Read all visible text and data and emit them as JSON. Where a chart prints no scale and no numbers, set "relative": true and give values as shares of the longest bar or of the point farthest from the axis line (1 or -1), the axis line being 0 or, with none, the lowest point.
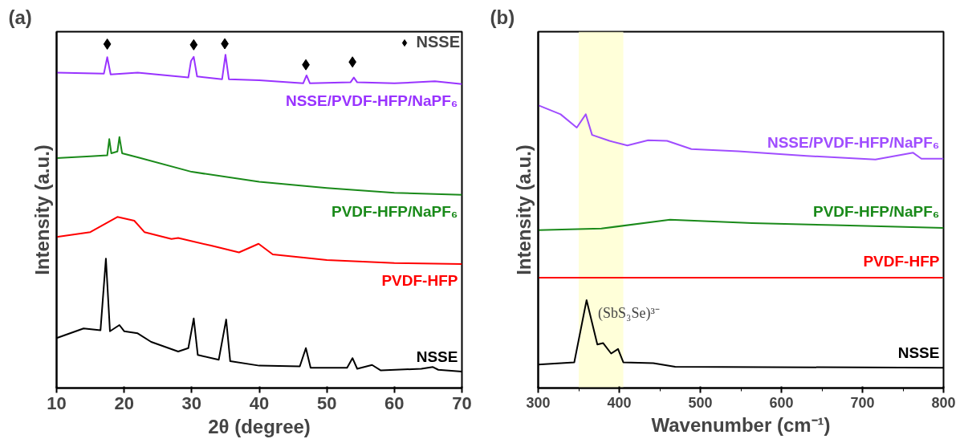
{
  "chart_data": [
    {
      "type": "line",
      "title": "(a)",
      "xlabel": "2θ (degree)",
      "ylabel": "Intensity (a.u.)",
      "relative": true,
      "xlim": [
        10,
        70
      ],
      "xticks": [
        10,
        20,
        30,
        40,
        50,
        60,
        70
      ],
      "tick_labels": "x",
      "legend": "top right",
      "series": [
        {
          "name": "NSSE/PVDF-HFP/NaPF₆",
          "color": "#9933ff",
          "x": [
            10,
            17.0,
            17.5,
            18,
            22,
            29.5,
            29.9,
            30.3,
            30.8,
            34.5,
            35.0,
            35.5,
            40,
            46.5,
            47,
            47.5,
            53.5,
            54,
            54.5,
            60,
            66,
            70
          ],
          "values": [
            0.916,
            0.913,
            0.961,
            0.911,
            0.916,
            0.902,
            0.95,
            0.962,
            0.905,
            0.897,
            0.968,
            0.897,
            0.894,
            0.885,
            0.908,
            0.885,
            0.888,
            0.902,
            0.888,
            0.885,
            0.891,
            0.883
          ]
        },
        {
          "name": "PVDF-HFP/NaPF₆",
          "color": "#1a8a1a",
          "x": [
            10,
            15,
            17.5,
            17.8,
            18.1,
            19.0,
            19.3,
            19.7,
            22,
            30,
            40,
            50,
            60,
            70
          ],
          "values": [
            0.668,
            0.673,
            0.676,
            0.723,
            0.682,
            0.687,
            0.729,
            0.682,
            0.67,
            0.628,
            0.599,
            0.581,
            0.567,
            0.561
          ]
        },
        {
          "name": "PVDF-HFP",
          "color": "#ff0000",
          "x": [
            10,
            15,
            19,
            21.5,
            23,
            27,
            28,
            33,
            37,
            39.9,
            42,
            50,
            60,
            70
          ],
          "values": [
            0.439,
            0.453,
            0.497,
            0.486,
            0.453,
            0.433,
            0.436,
            0.413,
            0.394,
            0.419,
            0.388,
            0.372,
            0.363,
            0.36
          ]
        },
        {
          "name": "NSSE",
          "color": "#000000",
          "x": [
            10,
            14,
            16.5,
            17.3,
            17.9,
            19.3,
            20,
            22,
            24,
            28,
            29.5,
            30.3,
            30.9,
            34,
            35.1,
            35.7,
            40,
            46,
            46.9,
            47.6,
            53,
            53.8,
            54.5,
            56.7,
            58,
            64,
            65.7,
            66.5,
            70
          ],
          "values": [
            0.145,
            0.173,
            0.168,
            0.376,
            0.165,
            0.183,
            0.165,
            0.159,
            0.134,
            0.106,
            0.116,
            0.202,
            0.096,
            0.082,
            0.199,
            0.078,
            0.065,
            0.063,
            0.116,
            0.059,
            0.059,
            0.087,
            0.056,
            0.067,
            0.051,
            0.056,
            0.061,
            0.053,
            0.048
          ]
        },
        {
          "type": "scatter",
          "name": "NSSE",
          "color": "#000000",
          "marker": "diamond",
          "x": [
            17.5,
            30.3,
            34.9,
            46.9,
            53.8
          ],
          "values": [
            0.999,
            0.997,
            1.0,
            0.939,
            0.947
          ]
        }
      ]
    },
    {
      "type": "line",
      "title": "(b)",
      "xlabel": "Wavenumber (cm⁻¹)",
      "ylabel": "Intensity (a.u.)",
      "relative": true,
      "xlim": [
        300,
        800
      ],
      "xticks": [
        300,
        400,
        500,
        600,
        700,
        800
      ],
      "tick_labels": "x",
      "bands": [
        {
          "axis": "x",
          "from": 350,
          "to": 405,
          "color": "#ffffd0"
        }
      ],
      "annotations": [
        {
          "text": "(SbS₃Se)³⁻",
          "x": 360,
          "y": 0.311
        }
      ],
      "series": [
        {
          "name": "NSSE/PVDF-HFP/NaPF₆",
          "color": "#a04dff",
          "x": [
            300,
            327.6,
            347.6,
            358.7,
            366.5,
            388,
            410,
            435.6,
            459,
            489,
            547,
            631,
            716,
            762.5,
            772.7,
            800
          ],
          "values": [
            1.0,
            0.968,
            0.921,
            0.968,
            0.895,
            0.874,
            0.858,
            0.876,
            0.874,
            0.845,
            0.837,
            0.821,
            0.808,
            0.832,
            0.811,
            0.811
          ]
        },
        {
          "name": "PVDF-HFP/NaPF₆",
          "color": "#1a8a1a",
          "x": [
            300,
            378,
            462.6,
            564,
            665,
            800
          ],
          "values": [
            0.558,
            0.564,
            0.595,
            0.583,
            0.576,
            0.566
          ]
        },
        {
          "name": "PVDF-HFP",
          "color": "#ff0000",
          "x": [
            300,
            800
          ],
          "values": [
            0.39,
            0.39
          ]
        },
        {
          "name": "NSSE",
          "color": "#000000",
          "x": [
            300,
            344.5,
            359.7,
            373,
            380,
            390,
            398.5,
            405,
            442,
            469,
            800
          ],
          "values": [
            0.083,
            0.091,
            0.311,
            0.154,
            0.159,
            0.122,
            0.138,
            0.091,
            0.088,
            0.075,
            0.072
          ]
        }
      ]
    }
  ]
}
